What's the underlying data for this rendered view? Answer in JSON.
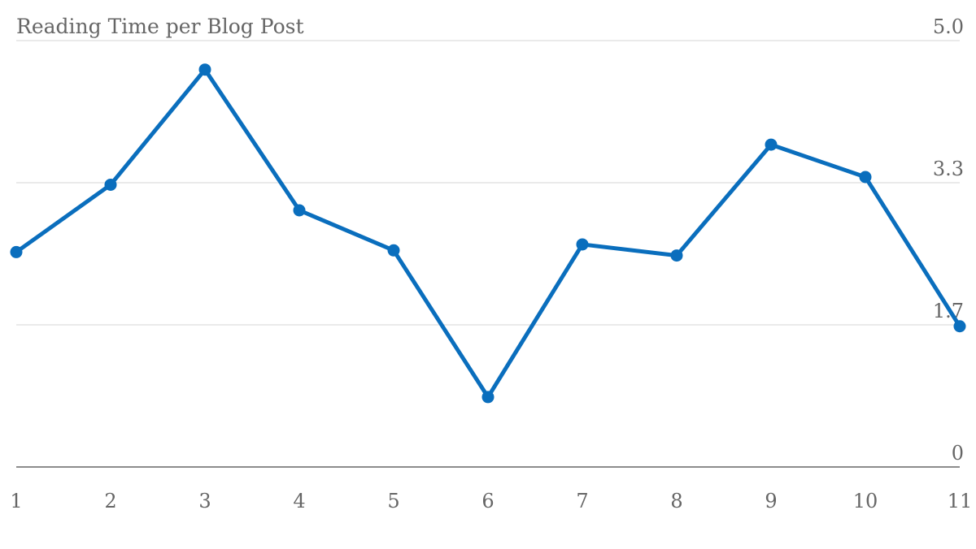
{
  "chart_data": {
    "type": "line",
    "title": "Reading Time per Blog Post",
    "xlabel": "",
    "ylabel": "",
    "x": [
      1,
      2,
      3,
      4,
      5,
      6,
      7,
      8,
      9,
      10,
      11
    ],
    "x_tick_labels": [
      "1",
      "2",
      "3",
      "4",
      "5",
      "6",
      "7",
      "8",
      "9",
      "10",
      "11"
    ],
    "y_tick_labels": [
      "5.0",
      "3.3",
      "1.7",
      "0"
    ],
    "y_ticks": [
      5.0,
      3.333,
      1.667,
      0
    ],
    "ylim": [
      0,
      5.0
    ],
    "grid": true,
    "y_axis_position": "right",
    "legend": "none",
    "series": [
      {
        "values": [
          2.52,
          3.31,
          4.66,
          3.01,
          2.54,
          0.82,
          2.61,
          2.48,
          3.78,
          3.4,
          1.65
        ],
        "color": "#0a6ebd"
      }
    ]
  }
}
